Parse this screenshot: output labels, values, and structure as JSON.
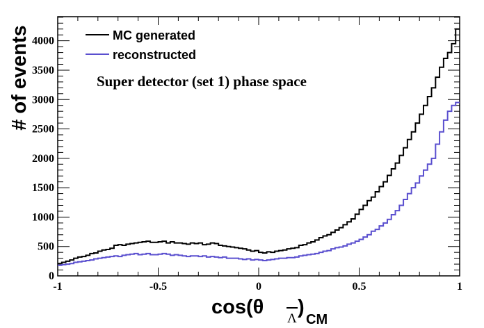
{
  "chart_data": {
    "type": "line",
    "style": "step-histogram",
    "title": "",
    "annotation": "Super detector (set 1) phase space",
    "xlabel": "cos(θ_Λ̄)_CM",
    "xlabel_parts": {
      "main": "cos(θ",
      "sub_symbol": "Λ",
      "close": ")",
      "subscript": "CM"
    },
    "ylabel": "# of events",
    "xlim": [
      -1,
      1
    ],
    "ylim": [
      0,
      4410
    ],
    "x_ticks": [
      -1,
      -0.5,
      0,
      0.5,
      1
    ],
    "x_tick_labels": [
      "-1",
      "-0.5",
      "0",
      "0.5",
      "1"
    ],
    "y_ticks": [
      0,
      500,
      1000,
      1500,
      2000,
      2500,
      3000,
      3500,
      4000
    ],
    "y_tick_labels": [
      "0",
      "500",
      "1000",
      "1500",
      "2000",
      "2500",
      "3000",
      "3500",
      "4000"
    ],
    "grid": false,
    "legend_position": "top-left",
    "n_bins": 100,
    "series": [
      {
        "name": "MC generated",
        "color": "#000000",
        "values": [
          210,
          230,
          250,
          270,
          300,
          320,
          330,
          350,
          380,
          390,
          420,
          440,
          450,
          470,
          520,
          530,
          520,
          540,
          550,
          560,
          570,
          580,
          590,
          570,
          570,
          580,
          590,
          560,
          580,
          560,
          560,
          550,
          540,
          560,
          550,
          560,
          530,
          540,
          560,
          550,
          520,
          510,
          500,
          490,
          480,
          470,
          460,
          440,
          420,
          430,
          400,
          390,
          410,
          400,
          420,
          430,
          440,
          460,
          470,
          480,
          520,
          530,
          560,
          580,
          610,
          650,
          680,
          700,
          740,
          780,
          820,
          870,
          920,
          970,
          1050,
          1130,
          1200,
          1280,
          1340,
          1430,
          1520,
          1600,
          1710,
          1820,
          1920,
          2050,
          2180,
          2320,
          2450,
          2600,
          2750,
          2900,
          3050,
          3200,
          3380,
          3550,
          3700,
          3800,
          3950,
          4200
        ]
      },
      {
        "name": "reconstructed",
        "color": "#5a4fcf",
        "values": [
          180,
          190,
          200,
          210,
          230,
          240,
          250,
          260,
          270,
          290,
          300,
          310,
          320,
          330,
          340,
          330,
          350,
          360,
          370,
          380,
          360,
          370,
          380,
          360,
          360,
          370,
          380,
          370,
          350,
          360,
          350,
          340,
          330,
          340,
          340,
          330,
          340,
          320,
          330,
          320,
          310,
          320,
          300,
          300,
          300,
          290,
          280,
          290,
          270,
          280,
          270,
          260,
          270,
          280,
          290,
          300,
          300,
          310,
          310,
          320,
          340,
          350,
          360,
          370,
          380,
          400,
          420,
          430,
          460,
          480,
          490,
          510,
          540,
          560,
          590,
          620,
          660,
          700,
          760,
          790,
          850,
          900,
          960,
          1040,
          1110,
          1200,
          1300,
          1400,
          1500,
          1580,
          1700,
          1800,
          1900,
          2000,
          2240,
          2450,
          2650,
          2800,
          2900,
          2950
        ]
      }
    ]
  }
}
